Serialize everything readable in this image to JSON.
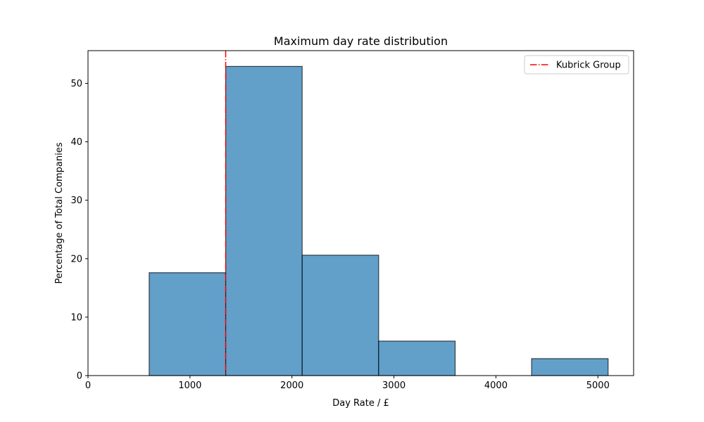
{
  "chart_data": {
    "type": "bar",
    "title": "Maximum day rate distribution",
    "xlabel": "Day Rate / £",
    "ylabel": "Percentage of Total Companies",
    "xlim": [
      0,
      5350
    ],
    "ylim": [
      0,
      55.6
    ],
    "xticks": [
      0,
      1000,
      2000,
      3000,
      4000,
      5000
    ],
    "yticks": [
      0,
      10,
      20,
      30,
      40,
      50
    ],
    "grid": false,
    "legend_position": "top-right",
    "bins": [
      {
        "x0": 600,
        "x1": 1350,
        "value": 17.6
      },
      {
        "x0": 1350,
        "x1": 2100,
        "value": 52.9
      },
      {
        "x0": 2100,
        "x1": 2850,
        "value": 20.6
      },
      {
        "x0": 2850,
        "x1": 3600,
        "value": 5.9
      },
      {
        "x0": 3600,
        "x1": 4350,
        "value": 0
      },
      {
        "x0": 4350,
        "x1": 5100,
        "value": 2.9
      }
    ],
    "reference_line": {
      "label": "Kubrick Group",
      "x": 1350,
      "color": "#ff0000",
      "style": "dash-dot"
    },
    "bar_color": "#1f77b4",
    "bar_alpha": 0.7,
    "bar_edge_color": "#000000"
  }
}
